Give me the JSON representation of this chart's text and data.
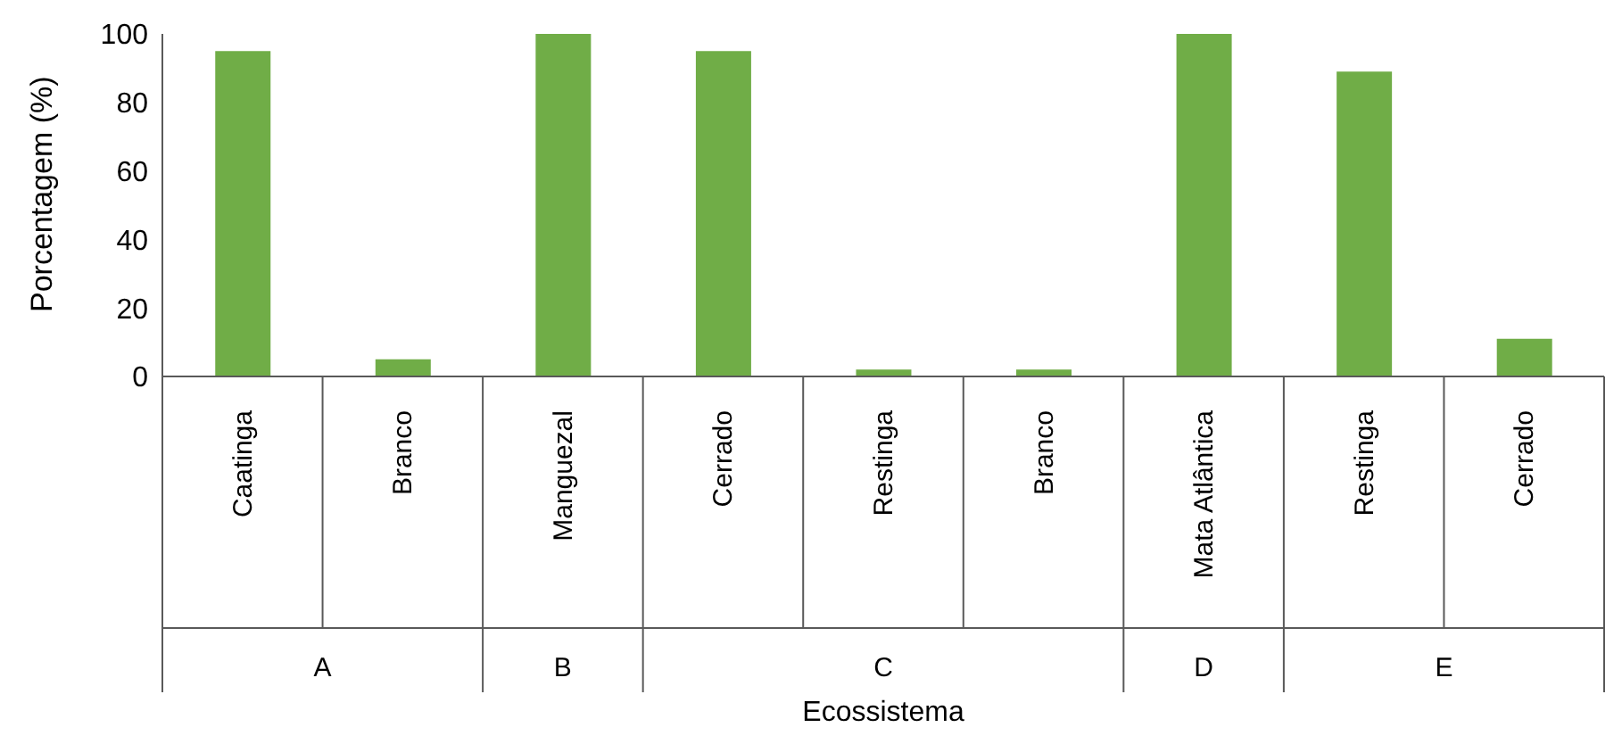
{
  "chart_data": {
    "type": "bar",
    "xlabel": "Ecossistema",
    "ylabel": "Porcentagem (%)",
    "categories": [
      "Caatinga",
      "Branco",
      "Manguezal",
      "Cerrado",
      "Restinga",
      "Branco",
      "Mata Atlântica",
      "Restinga",
      "Cerrado"
    ],
    "values": [
      95,
      5,
      100,
      95,
      2,
      2,
      100,
      89,
      11
    ],
    "color": "#70ad47",
    "ylim": [
      0,
      100
    ],
    "yticks": [
      0,
      20,
      40,
      60,
      80,
      100
    ],
    "annotations": [
      "A",
      "B",
      "C",
      "D",
      "E"
    ]
  }
}
